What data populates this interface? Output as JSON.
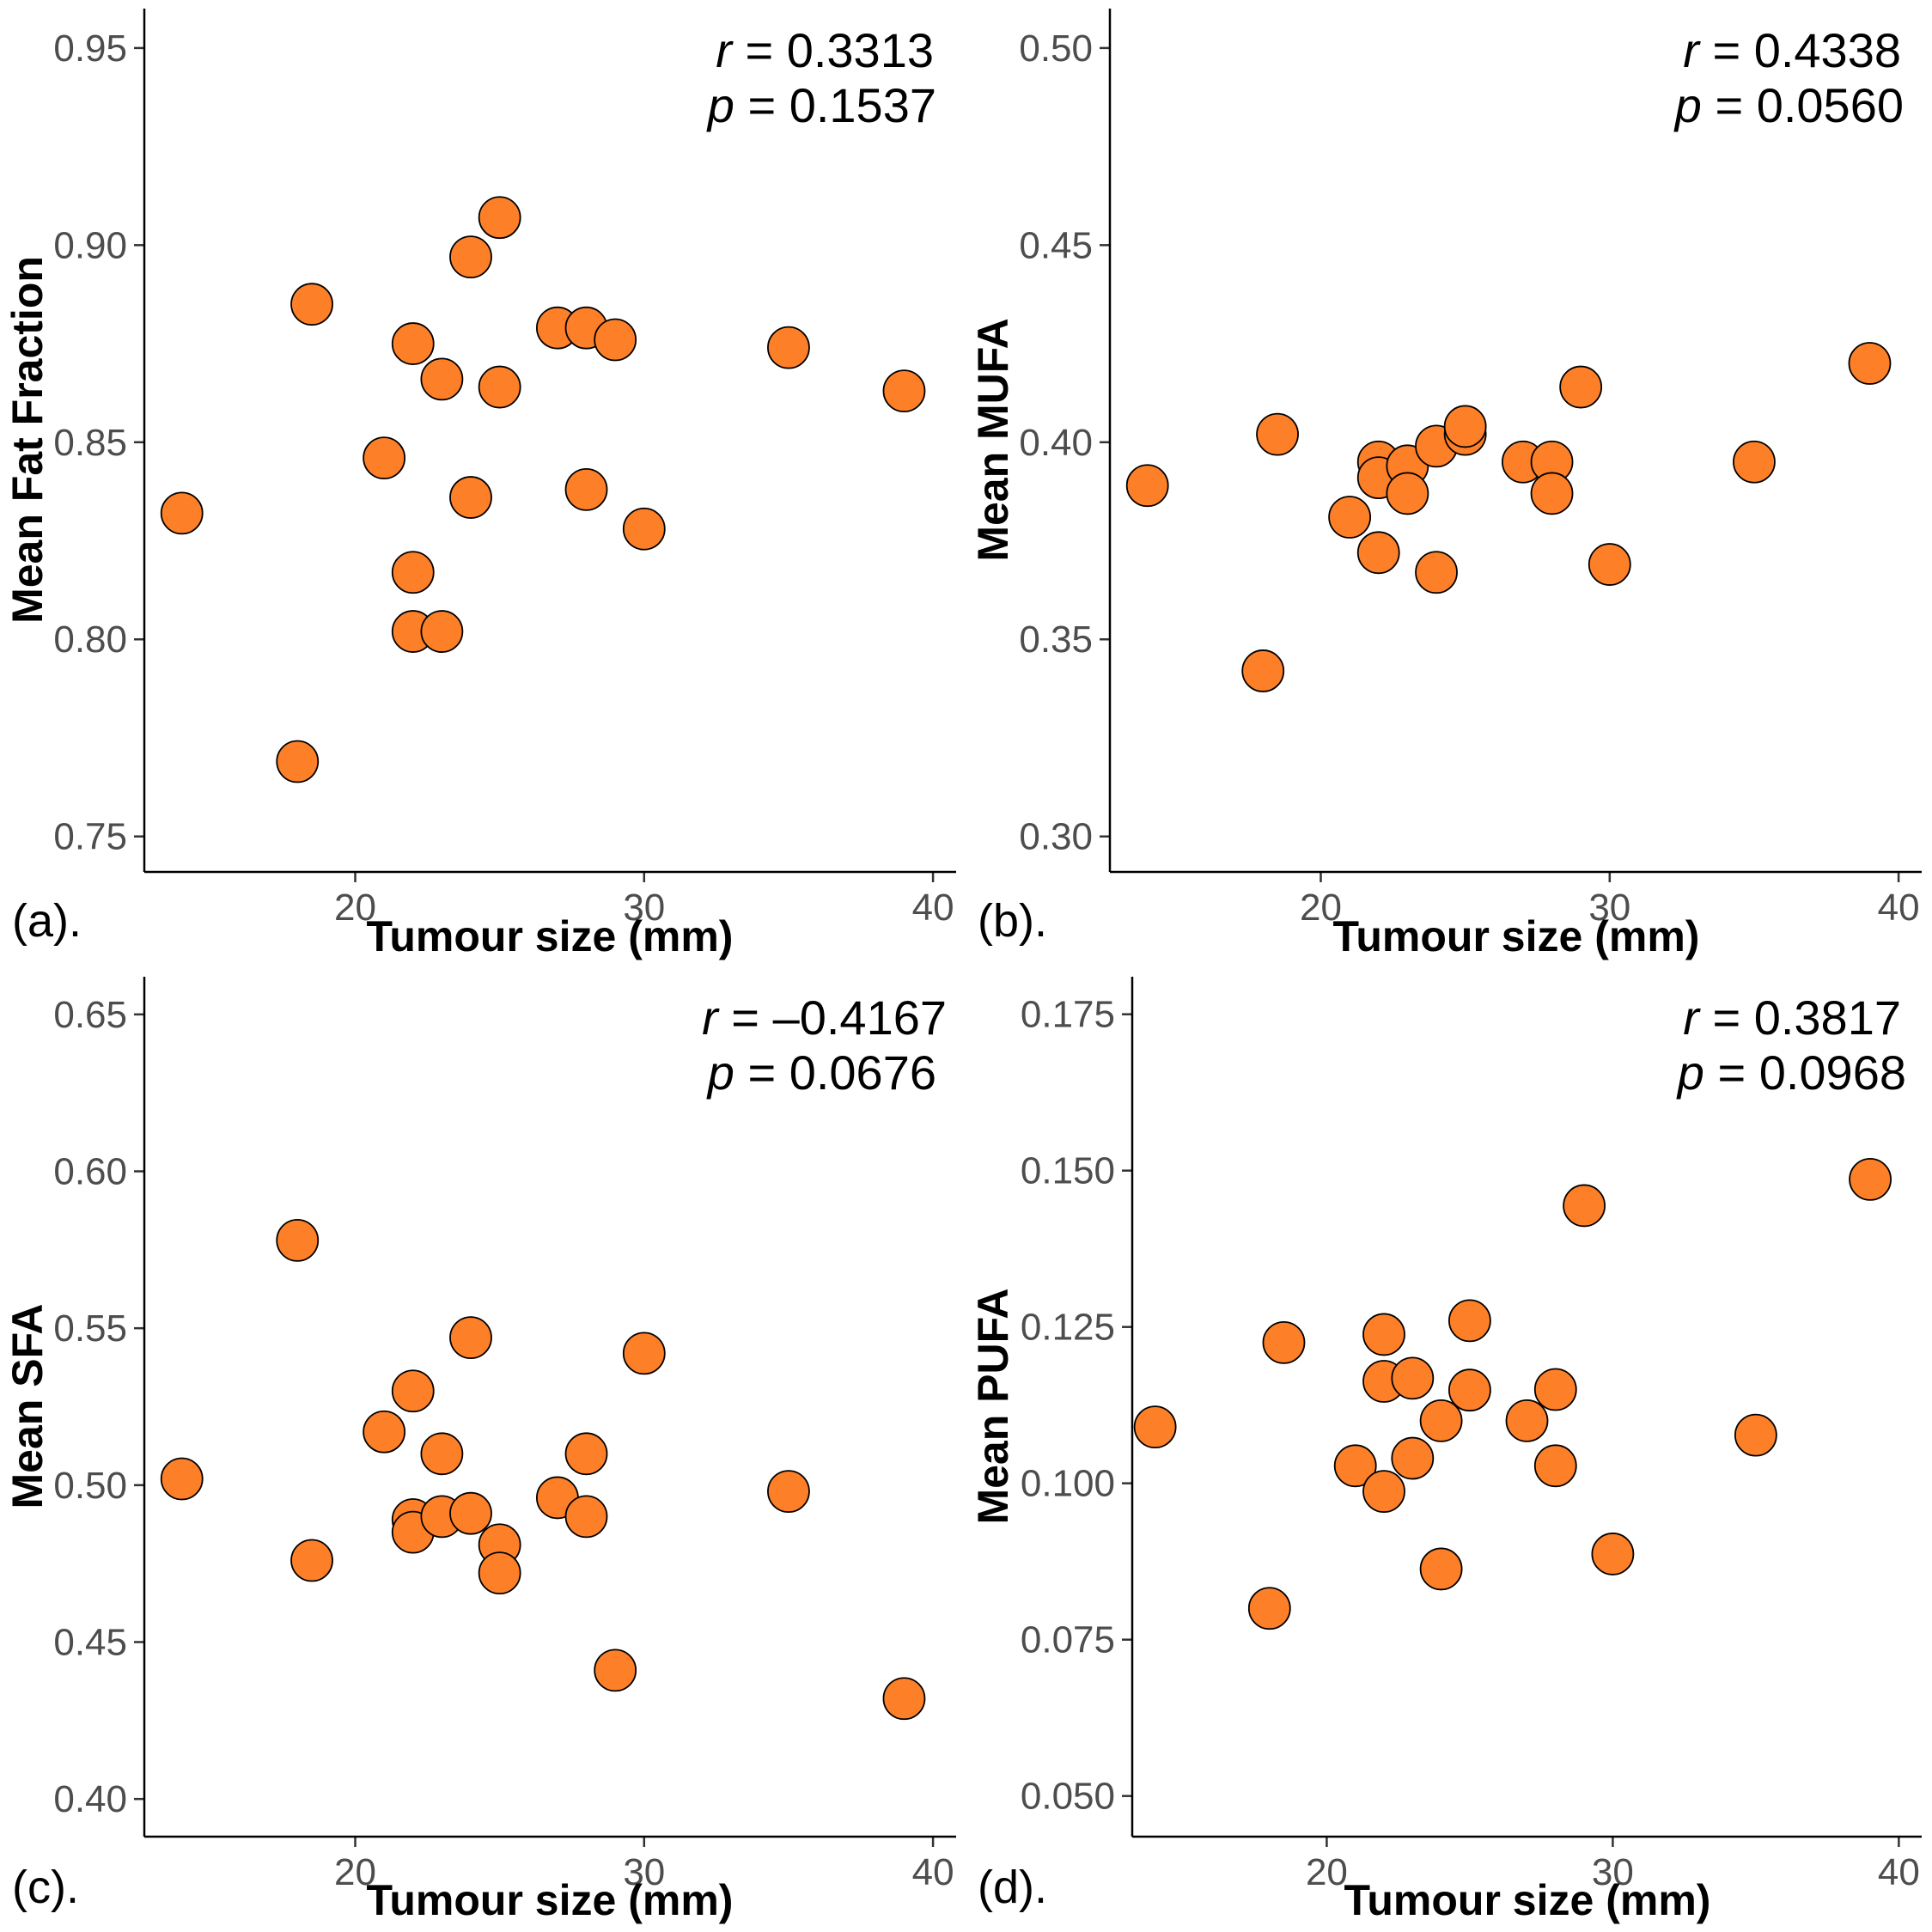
{
  "colors": {
    "point_fill": "#fd7f28",
    "point_stroke": "#000000"
  },
  "chart_data": [
    {
      "type": "scatter",
      "panel_label": "(a).",
      "xlabel": "Tumour size (mm)",
      "ylabel": "Mean Fat Fraction",
      "stat_r_label": "r",
      "stat_r_value": " = 0.3313",
      "stat_p_label": "p",
      "stat_p_value": " = 0.1537",
      "xlim": [
        12.7,
        40.8
      ],
      "ylim": [
        0.741,
        0.96
      ],
      "xticks": [
        20,
        30,
        40
      ],
      "xtick_labels": [
        "20",
        "30",
        "40"
      ],
      "yticks": [
        0.75,
        0.8,
        0.85,
        0.9,
        0.95
      ],
      "ytick_labels": [
        "0.75",
        "0.80",
        "0.85",
        "0.90",
        "0.95"
      ],
      "x": [
        14,
        18,
        18.5,
        21,
        22,
        22,
        22,
        23,
        23,
        24,
        24,
        25,
        25,
        27,
        28,
        28,
        29,
        30,
        35,
        39
      ],
      "y": [
        0.832,
        0.769,
        0.885,
        0.846,
        0.875,
        0.817,
        0.802,
        0.866,
        0.802,
        0.897,
        0.836,
        0.907,
        0.864,
        0.879,
        0.879,
        0.838,
        0.876,
        0.828,
        0.874,
        0.863
      ]
    },
    {
      "type": "scatter",
      "panel_label": "(b).",
      "xlabel": "Tumour size (mm)",
      "ylabel": "Mean MUFA",
      "stat_r_label": "r",
      "stat_r_value": " = 0.4338",
      "stat_p_label": "p",
      "stat_p_value": " = 0.0560",
      "xlim": [
        12.7,
        40.8
      ],
      "ylim": [
        0.291,
        0.51
      ],
      "xticks": [
        20,
        30,
        40
      ],
      "xtick_labels": [
        "20",
        "30",
        "40"
      ],
      "yticks": [
        0.3,
        0.35,
        0.4,
        0.45,
        0.5
      ],
      "ytick_labels": [
        "0.30",
        "0.35",
        "0.40",
        "0.45",
        "0.50"
      ],
      "x": [
        14,
        18,
        18.5,
        21,
        22,
        22,
        22,
        23,
        23,
        24,
        24,
        25,
        25,
        27,
        28,
        28,
        29,
        30,
        35,
        39
      ],
      "y": [
        0.389,
        0.342,
        0.402,
        0.381,
        0.395,
        0.391,
        0.372,
        0.394,
        0.387,
        0.399,
        0.367,
        0.402,
        0.404,
        0.395,
        0.395,
        0.387,
        0.414,
        0.369,
        0.395,
        0.42
      ]
    },
    {
      "type": "scatter",
      "panel_label": "(c).",
      "xlabel": "Tumour size (mm)",
      "ylabel": "Mean SFA",
      "stat_r_label": "r",
      "stat_r_value": " = –0.4167",
      "stat_p_label": "p",
      "stat_p_value": " = 0.0676",
      "xlim": [
        12.7,
        40.8
      ],
      "ylim": [
        0.388,
        0.662
      ],
      "xticks": [
        20,
        30,
        40
      ],
      "xtick_labels": [
        "20",
        "30",
        "40"
      ],
      "yticks": [
        0.4,
        0.45,
        0.5,
        0.55,
        0.6,
        0.65
      ],
      "ytick_labels": [
        "0.40",
        "0.45",
        "0.50",
        "0.55",
        "0.60",
        "0.65"
      ],
      "x": [
        14,
        18,
        18.5,
        21,
        22,
        22,
        22,
        23,
        23,
        24,
        24,
        25,
        25,
        27,
        28,
        28,
        29,
        30,
        35,
        39
      ],
      "y": [
        0.502,
        0.578,
        0.476,
        0.517,
        0.53,
        0.489,
        0.485,
        0.51,
        0.49,
        0.547,
        0.491,
        0.481,
        0.472,
        0.496,
        0.51,
        0.49,
        0.441,
        0.542,
        0.498,
        0.432
      ]
    },
    {
      "type": "scatter",
      "panel_label": "(d).",
      "xlabel": "Tumour size (mm)",
      "ylabel": "Mean PUFA",
      "stat_r_label": "r",
      "stat_r_value": " = 0.3817",
      "stat_p_label": "p",
      "stat_p_value": " = 0.0968",
      "xlim": [
        13.2,
        40.8
      ],
      "ylim": [
        0.0435,
        0.181
      ],
      "xticks": [
        20,
        30,
        40
      ],
      "xtick_labels": [
        "20",
        "30",
        "40"
      ],
      "yticks": [
        0.05,
        0.075,
        0.1,
        0.125,
        0.15,
        0.175
      ],
      "ytick_labels": [
        "0.050",
        "0.075",
        "0.100",
        "0.125",
        "0.150",
        "0.175"
      ],
      "x": [
        14,
        18,
        18.5,
        21,
        22,
        22,
        22,
        23,
        23,
        24,
        24,
        25,
        25,
        27,
        28,
        28,
        29,
        30,
        35,
        39
      ],
      "y": [
        0.109,
        0.08,
        0.1225,
        0.1028,
        0.1238,
        0.1163,
        0.0987,
        0.1168,
        0.104,
        0.11,
        0.0863,
        0.126,
        0.1149,
        0.11,
        0.115,
        0.1028,
        0.1444,
        0.0887,
        0.1077,
        0.1486
      ]
    }
  ]
}
